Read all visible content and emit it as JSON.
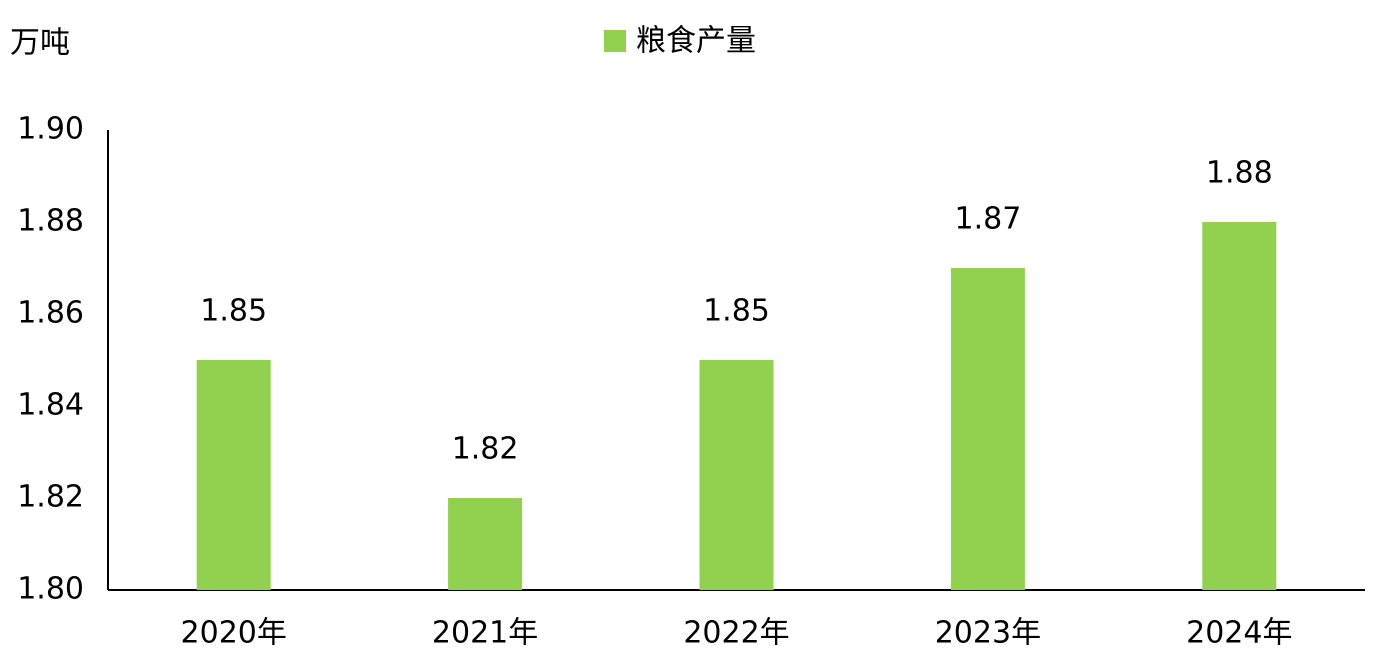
{
  "chart_data": {
    "type": "bar",
    "y_label": "万吨",
    "legend": "粮食产量",
    "categories": [
      "2020年",
      "2021年",
      "2022年",
      "2023年",
      "2024年"
    ],
    "values": [
      1.85,
      1.82,
      1.85,
      1.87,
      1.88
    ],
    "color": "#92d050",
    "ylim": [
      1.8,
      1.9
    ],
    "yticks": [
      {
        "value": 1.8,
        "label": "1.80"
      },
      {
        "value": 1.82,
        "label": "1.82"
      },
      {
        "value": 1.84,
        "label": "1.84"
      },
      {
        "value": 1.86,
        "label": "1.86"
      },
      {
        "value": 1.88,
        "label": "1.88"
      },
      {
        "value": 1.9,
        "label": "1.90"
      }
    ],
    "grid": false
  }
}
